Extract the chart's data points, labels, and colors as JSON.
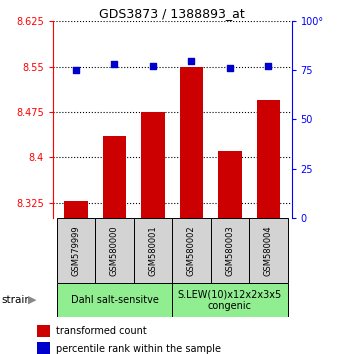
{
  "title": "GDS3873 / 1388893_at",
  "samples": [
    "GSM579999",
    "GSM580000",
    "GSM580001",
    "GSM580002",
    "GSM580003",
    "GSM580004"
  ],
  "red_values": [
    8.328,
    8.435,
    8.475,
    8.55,
    8.41,
    8.495
  ],
  "blue_values": [
    75,
    78,
    77,
    80,
    76,
    77
  ],
  "ylim_left": [
    8.3,
    8.625
  ],
  "ylim_right": [
    0,
    100
  ],
  "yticks_left": [
    8.325,
    8.4,
    8.475,
    8.55,
    8.625
  ],
  "yticks_right": [
    0,
    25,
    50,
    75,
    100
  ],
  "bar_color": "#cc0000",
  "dot_color": "#0000cc",
  "group1_label": "Dahl salt-sensitve",
  "group2_label": "S.LEW(10)x12x2x3x5\ncongenic",
  "group1_indices": [
    0,
    1,
    2
  ],
  "group2_indices": [
    3,
    4,
    5
  ],
  "group_color": "#90EE90",
  "sample_box_color": "#d3d3d3",
  "legend1": "transformed count",
  "legend2": "percentile rank within the sample",
  "bar_baseline": 8.3,
  "bar_width": 0.6
}
